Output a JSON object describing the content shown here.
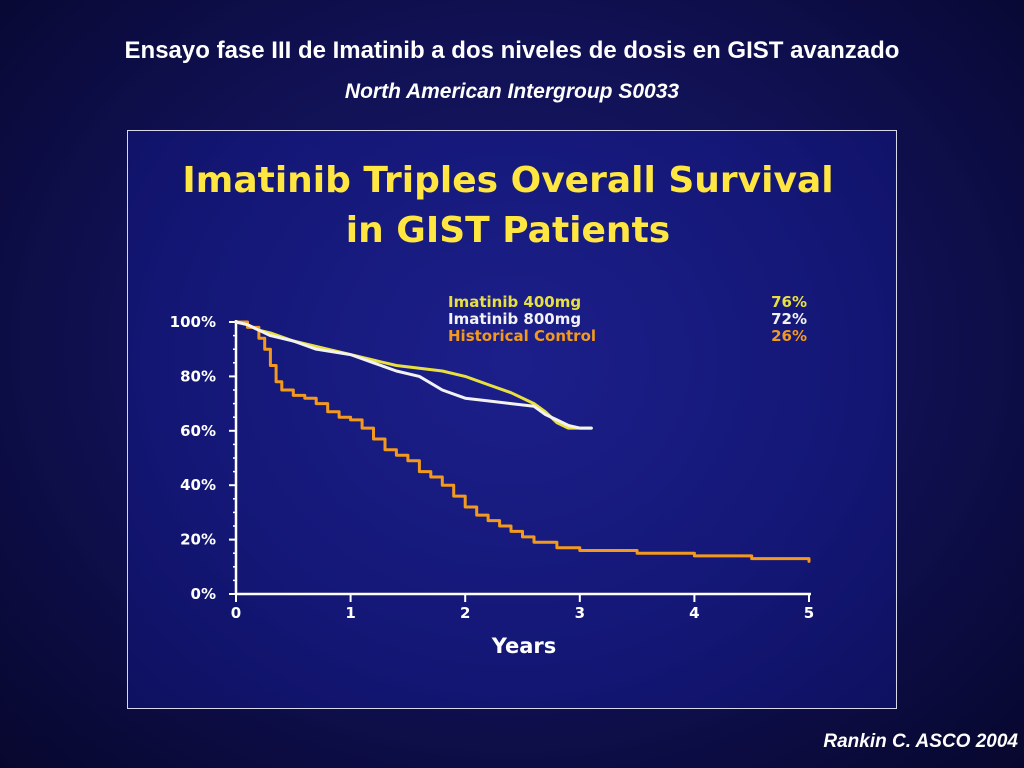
{
  "slide": {
    "title": "Ensayo fase III de Imatinib a dos niveles de dosis en GIST avanzado",
    "subtitle": "North American Intergroup S0033",
    "citation": "Rankin C. ASCO 2004"
  },
  "chart_data": {
    "type": "line",
    "title_lines": [
      "Imatinib Triples Overall Survival",
      "in GIST Patients"
    ],
    "title_color": "#ffe640",
    "xlabel": "Years",
    "ylabel": "",
    "xlim": [
      0,
      5
    ],
    "ylim": [
      0,
      100
    ],
    "x_ticks": [
      "0",
      "1",
      "2",
      "3",
      "4",
      "5"
    ],
    "y_ticks": [
      "0%",
      "20%",
      "40%",
      "60%",
      "80%",
      "100%"
    ],
    "grid": false,
    "legend_position": "top-right",
    "series": [
      {
        "name": "Imatinib 400mg",
        "end_label": "76%",
        "color": "#e8e040",
        "step": false,
        "x": [
          0,
          0.1,
          0.2,
          0.3,
          0.5,
          0.7,
          1.0,
          1.2,
          1.4,
          1.6,
          1.8,
          2.0,
          2.2,
          2.4,
          2.6,
          2.7,
          2.8,
          2.9,
          3.0,
          3.1
        ],
        "y": [
          100,
          99,
          97,
          96,
          93,
          91,
          88,
          86,
          84,
          83,
          82,
          80,
          77,
          74,
          70,
          67,
          63,
          61,
          61,
          61
        ]
      },
      {
        "name": "Imatinib 800mg",
        "end_label": "72%",
        "color": "#f2f2f2",
        "step": false,
        "x": [
          0,
          0.1,
          0.2,
          0.3,
          0.5,
          0.7,
          1.0,
          1.2,
          1.4,
          1.6,
          1.8,
          2.0,
          2.2,
          2.4,
          2.6,
          2.7,
          2.8,
          2.9,
          3.0,
          3.1
        ],
        "y": [
          100,
          99,
          97,
          95,
          93,
          90,
          88,
          85,
          82,
          80,
          75,
          72,
          71,
          70,
          69,
          66,
          64,
          62,
          61,
          61
        ]
      },
      {
        "name": "Historical Control",
        "end_label": "26%",
        "color": "#f39a1e",
        "step": true,
        "x": [
          0,
          0.1,
          0.2,
          0.25,
          0.3,
          0.35,
          0.4,
          0.5,
          0.6,
          0.7,
          0.8,
          0.9,
          1.0,
          1.1,
          1.2,
          1.3,
          1.4,
          1.5,
          1.6,
          1.7,
          1.8,
          1.9,
          2.0,
          2.1,
          2.2,
          2.3,
          2.4,
          2.5,
          2.6,
          2.8,
          3.0,
          3.5,
          4.0,
          4.5,
          5.0
        ],
        "y": [
          100,
          98,
          94,
          90,
          84,
          78,
          75,
          73,
          72,
          70,
          67,
          65,
          64,
          61,
          57,
          53,
          51,
          49,
          45,
          43,
          40,
          36,
          32,
          29,
          27,
          25,
          23,
          21,
          19,
          17,
          16,
          15,
          14,
          13,
          12
        ]
      }
    ]
  }
}
